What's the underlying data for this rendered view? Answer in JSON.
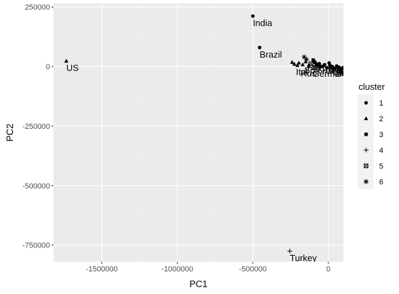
{
  "chart_data": {
    "type": "scatter",
    "xlabel": "PC1",
    "ylabel": "PC2",
    "xlim": [
      -1820000,
      100000
    ],
    "ylim": [
      -820000,
      265000
    ],
    "x_ticks": [
      -1500000,
      -1000000,
      -500000,
      0
    ],
    "x_tick_labels": [
      "-1500000",
      "-1000000",
      "-500000",
      "0"
    ],
    "y_ticks": [
      250000,
      0,
      -250000,
      -500000,
      -750000
    ],
    "y_tick_labels": [
      "250000",
      "0",
      "-250000",
      "-500000",
      "-750000"
    ],
    "grid": true,
    "legend": {
      "title": "cluster",
      "position": "right",
      "entries": [
        {
          "label": "1",
          "shape": "circle"
        },
        {
          "label": "2",
          "shape": "triangle"
        },
        {
          "label": "3",
          "shape": "square"
        },
        {
          "label": "4",
          "shape": "plus"
        },
        {
          "label": "5",
          "shape": "boxed-x"
        },
        {
          "label": "6",
          "shape": "asterisk"
        }
      ]
    },
    "points": [
      {
        "x": 5000,
        "y": 15000,
        "cluster": "1",
        "label": "",
        "labeled": false
      },
      {
        "x": -500000,
        "y": 212000,
        "cluster": "1",
        "label": "India",
        "labeled": true
      },
      {
        "x": -455000,
        "y": 80000,
        "cluster": "1",
        "label": "Brazil",
        "labeled": true
      },
      {
        "x": -1735000,
        "y": 23000,
        "cluster": "2",
        "label": "US",
        "labeled": true
      },
      {
        "x": -255000,
        "y": -775000,
        "cluster": "4",
        "label": "Turkey",
        "labeled": true
      },
      {
        "x": -240000,
        "y": 18000,
        "cluster": "2",
        "label": "",
        "labeled": false
      },
      {
        "x": -225000,
        "y": 10000,
        "cluster": "2",
        "label": "",
        "labeled": false
      },
      {
        "x": -205000,
        "y": 5000,
        "cluster": "2",
        "label": "",
        "labeled": false
      },
      {
        "x": -195000,
        "y": 15000,
        "cluster": "2",
        "label": "",
        "labeled": false
      },
      {
        "x": -170000,
        "y": 8000,
        "cluster": "2",
        "label": "",
        "labeled": false
      },
      {
        "x": -150000,
        "y": 20000,
        "cluster": "2",
        "label": "",
        "labeled": false
      },
      {
        "x": -130000,
        "y": 5000,
        "cluster": "2",
        "label": "",
        "labeled": false
      },
      {
        "x": -160000,
        "y": 40000,
        "cluster": "6",
        "label": "",
        "labeled": false
      },
      {
        "x": -145000,
        "y": 30000,
        "cluster": "6",
        "label": "",
        "labeled": false
      },
      {
        "x": -100000,
        "y": 27000,
        "cluster": "3",
        "label": "",
        "labeled": false
      },
      {
        "x": -90000,
        "y": 18000,
        "cluster": "3",
        "label": "",
        "labeled": false
      },
      {
        "x": -80000,
        "y": 10000,
        "cluster": "3",
        "label": "",
        "labeled": false
      },
      {
        "x": -65000,
        "y": 5000,
        "cluster": "3",
        "label": "",
        "labeled": false
      },
      {
        "x": -50000,
        "y": 0,
        "cluster": "3",
        "label": "",
        "labeled": false
      },
      {
        "x": -115000,
        "y": 12000,
        "cluster": "5",
        "label": "",
        "labeled": false
      },
      {
        "x": -95000,
        "y": -5000,
        "cluster": "5",
        "label": "",
        "labeled": false
      },
      {
        "x": -75000,
        "y": 3000,
        "cluster": "5",
        "label": "",
        "labeled": false
      },
      {
        "x": -60000,
        "y": 12000,
        "cluster": "1",
        "label": "",
        "labeled": false
      },
      {
        "x": -40000,
        "y": 0,
        "cluster": "1",
        "label": "",
        "labeled": false
      },
      {
        "x": -25000,
        "y": 8000,
        "cluster": "1",
        "label": "",
        "labeled": false
      },
      {
        "x": -10000,
        "y": -5000,
        "cluster": "1",
        "label": "",
        "labeled": false
      },
      {
        "x": 10000,
        "y": 5000,
        "cluster": "1",
        "label": "",
        "labeled": false
      },
      {
        "x": 25000,
        "y": 0,
        "cluster": "1",
        "label": "",
        "labeled": false
      },
      {
        "x": 40000,
        "y": -8000,
        "cluster": "1",
        "label": "",
        "labeled": false
      },
      {
        "x": 55000,
        "y": 2000,
        "cluster": "1",
        "label": "",
        "labeled": false
      },
      {
        "x": 70000,
        "y": -3000,
        "cluster": "1",
        "label": "",
        "labeled": false
      },
      {
        "x": 85000,
        "y": -10000,
        "cluster": "1",
        "label": "",
        "labeled": false
      },
      {
        "x": 95000,
        "y": -5000,
        "cluster": "1",
        "label": "",
        "labeled": false
      }
    ],
    "cluster_labels": [
      {
        "text": "Germany",
        "x": -105000,
        "y": -10000,
        "cluster": "3"
      },
      {
        "text": "Ital",
        "x": -215000,
        "y": -2000,
        "cluster": "2"
      },
      {
        "text": "Rus",
        "x": -185000,
        "y": -8000,
        "cluster": "2"
      },
      {
        "text": "Spa",
        "x": -160000,
        "y": 5000,
        "cluster": "2"
      },
      {
        "text": "Fra",
        "x": -140000,
        "y": 18000,
        "cluster": "2"
      },
      {
        "text": "Can",
        "x": -60000,
        "y": 12000,
        "cluster": "1"
      },
      {
        "text": "Peru",
        "x": -40000,
        "y": 8000,
        "cluster": "1"
      },
      {
        "text": "Chile",
        "x": -20000,
        "y": 2000,
        "cluster": "1"
      },
      {
        "text": "Saudi",
        "x": 5000,
        "y": 10000,
        "cluster": "1"
      },
      {
        "text": "Qatar",
        "x": 30000,
        "y": -3000,
        "cluster": "1"
      },
      {
        "text": "Iran",
        "x": 50000,
        "y": 5000,
        "cluster": "1"
      },
      {
        "text": "Mexico",
        "x": 70000,
        "y": -6000,
        "cluster": "1"
      }
    ]
  }
}
